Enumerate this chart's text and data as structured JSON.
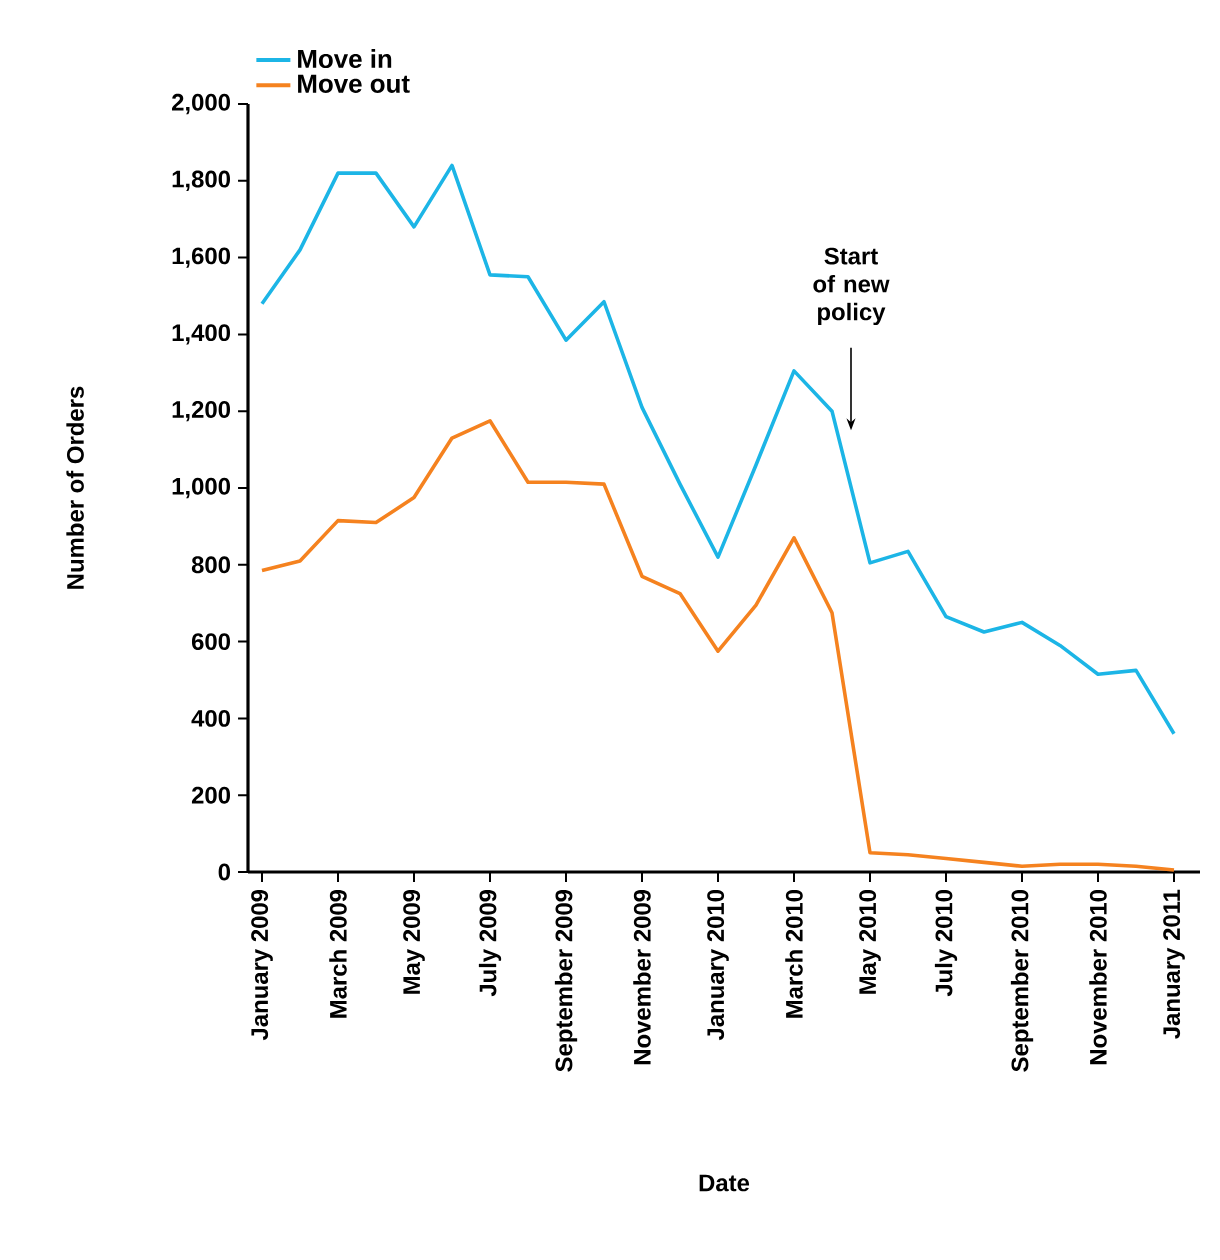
{
  "chart_data": {
    "type": "line",
    "categories": [
      "January 2009",
      null,
      "March 2009",
      null,
      "May 2009",
      null,
      "July 2009",
      null,
      "September 2009",
      null,
      "November 2009",
      null,
      "January 2010",
      null,
      "March 2010",
      null,
      "May 2010",
      null,
      "July 2010",
      null,
      "September 2010",
      null,
      "November 2010",
      null,
      "January 2011"
    ],
    "series": [
      {
        "name": "Move in",
        "color": "#1cb5e6",
        "values": [
          1480,
          1620,
          1820,
          1820,
          1680,
          1840,
          1555,
          1550,
          1385,
          1485,
          1210,
          1010,
          820,
          1060,
          1305,
          1200,
          805,
          835,
          665,
          625,
          650,
          590,
          515,
          525,
          360
        ]
      },
      {
        "name": "Move out",
        "color": "#f5821f",
        "values": [
          785,
          810,
          915,
          910,
          975,
          1130,
          1175,
          1015,
          1015,
          1010,
          770,
          725,
          575,
          695,
          870,
          675,
          50,
          45,
          35,
          25,
          15,
          20,
          20,
          15,
          5
        ]
      }
    ],
    "xlabel": "Date",
    "ylabel": "Number of Orders",
    "ylim": [
      0,
      2000
    ],
    "yticks": [
      0,
      200,
      400,
      600,
      800,
      {
        "value": 1000,
        "label": "1,000"
      },
      {
        "value": 1200,
        "label": "1,200"
      },
      {
        "value": 1400,
        "label": "1,400"
      },
      {
        "value": 1600,
        "label": "1,600"
      },
      {
        "value": 1800,
        "label": "1,800"
      },
      {
        "value": 2000,
        "label": "2,000"
      }
    ],
    "annotations": [
      "Start of new policy"
    ],
    "legend": "top left",
    "marker": "none",
    "line_style": "solid"
  }
}
